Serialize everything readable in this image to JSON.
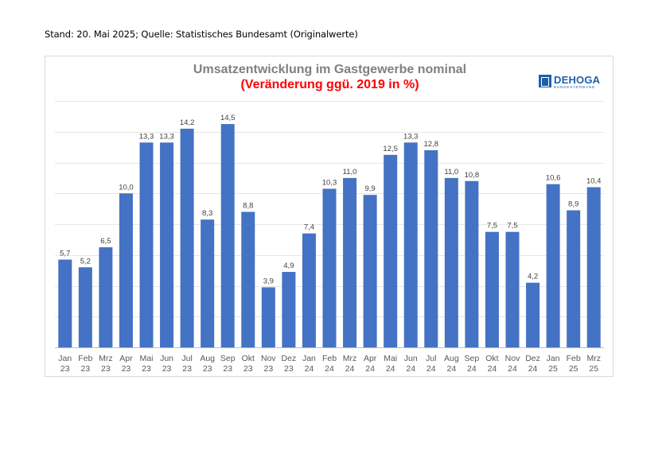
{
  "header": {
    "stand": "Stand: 20. Mai 2025; Quelle: Statistisches Bundesamt (Originalwerte)"
  },
  "logo": {
    "name": "DEHOGA",
    "subtitle": "BUNDESVERBAND",
    "color": "#1f5fa8"
  },
  "chart_data": {
    "type": "bar",
    "title": "Umsatzentwicklung im Gastgewerbe nominal",
    "subtitle": "(Veränderung ggü. 2019 in %)",
    "xlabel": "",
    "ylabel": "",
    "ylim": [
      0,
      16
    ],
    "yticks": [
      0,
      2,
      4,
      6,
      8,
      10,
      12,
      14,
      16
    ],
    "grid": true,
    "bar_color": "#4472c4",
    "categories": [
      [
        "Jan",
        "23"
      ],
      [
        "Feb",
        "23"
      ],
      [
        "Mrz",
        "23"
      ],
      [
        "Apr",
        "23"
      ],
      [
        "Mai",
        "23"
      ],
      [
        "Jun",
        "23"
      ],
      [
        "Jul",
        "23"
      ],
      [
        "Aug",
        "23"
      ],
      [
        "Sep",
        "23"
      ],
      [
        "Okt",
        "23"
      ],
      [
        "Nov",
        "23"
      ],
      [
        "Dez",
        "23"
      ],
      [
        "Jan",
        "24"
      ],
      [
        "Feb",
        "24"
      ],
      [
        "Mrz",
        "24"
      ],
      [
        "Apr",
        "24"
      ],
      [
        "Mai",
        "24"
      ],
      [
        "Jun",
        "24"
      ],
      [
        "Jul",
        "24"
      ],
      [
        "Aug",
        "24"
      ],
      [
        "Sep",
        "24"
      ],
      [
        "Okt",
        "24"
      ],
      [
        "Nov",
        "24"
      ],
      [
        "Dez",
        "24"
      ],
      [
        "Jan",
        "25"
      ],
      [
        "Feb",
        "25"
      ],
      [
        "Mrz",
        "25"
      ]
    ],
    "values": [
      5.7,
      5.2,
      6.5,
      10.0,
      13.3,
      13.3,
      14.2,
      8.3,
      14.5,
      8.8,
      3.9,
      4.9,
      7.4,
      10.3,
      11.0,
      9.9,
      12.5,
      13.3,
      12.8,
      11.0,
      10.8,
      7.5,
      7.5,
      4.2,
      10.6,
      8.9,
      10.4
    ],
    "value_labels": [
      "5,7",
      "5,2",
      "6,5",
      "10,0",
      "13,3",
      "13,3",
      "14,2",
      "8,3",
      "14,5",
      "8,8",
      "3,9",
      "4,9",
      "7,4",
      "10,3",
      "11,0",
      "9,9",
      "12,5",
      "13,3",
      "12,8",
      "11,0",
      "10,8",
      "7,5",
      "7,5",
      "4,2",
      "10,6",
      "8,9",
      "10,4"
    ]
  }
}
